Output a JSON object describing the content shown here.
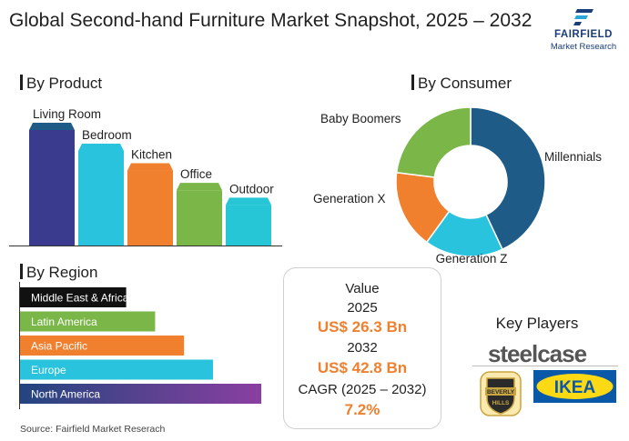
{
  "title": "Global Second-hand Furniture Market Snapshot, 2025 – 2032",
  "logo": {
    "name": "FAIRFIELD",
    "subtitle": "Market Research"
  },
  "sections": {
    "product": "By Product",
    "consumer": "By Consumer",
    "region": "By Region",
    "key_players": "Key Players"
  },
  "chart_data": [
    {
      "type": "bar",
      "title": "By Product",
      "categories": [
        "Living Room",
        "Bedroom",
        "Kitchen",
        "Office",
        "Outdoor"
      ],
      "values": [
        100,
        83,
        67,
        51,
        39
      ],
      "colors": [
        "#3a3a8f",
        "#29c3de",
        "#f07f2e",
        "#7ab648",
        "#27c6d6"
      ],
      "cap_color": "#1e5b86"
    },
    {
      "type": "pie",
      "title": "By Consumer",
      "categories": [
        "Millennials",
        "Generation Z",
        "Generation X",
        "Baby Boomers"
      ],
      "values": [
        43,
        17,
        17,
        23
      ],
      "colors": [
        "#1e5b86",
        "#29c3de",
        "#f07f2e",
        "#7ab648"
      ]
    },
    {
      "type": "bar",
      "title": "By Region",
      "orientation": "horizontal",
      "categories": [
        "Middle East & Africa",
        "Latin America",
        "Asia Pacific",
        "Europe",
        "North America"
      ],
      "values": [
        44,
        56,
        68,
        80,
        100
      ],
      "colors": [
        "#111111",
        "#7ab648",
        "#f07f2e",
        "#29c3de",
        "#3a3a8f"
      ]
    }
  ],
  "value_box": {
    "value_label": "Value",
    "year_start": "2025",
    "value_start": "US$ 26.3 Bn",
    "year_end": "2032",
    "value_end": "US$ 42.8 Bn",
    "cagr_label": "CAGR (2025 – 2032)",
    "cagr_value": "7.2%"
  },
  "key_players": {
    "steelcase": "steelcase",
    "beverly_hills_line1": "BEVERLY",
    "beverly_hills_line2": "HILLS",
    "ikea": "IKEA"
  },
  "source": "Source: Fairfield Market Reserach"
}
